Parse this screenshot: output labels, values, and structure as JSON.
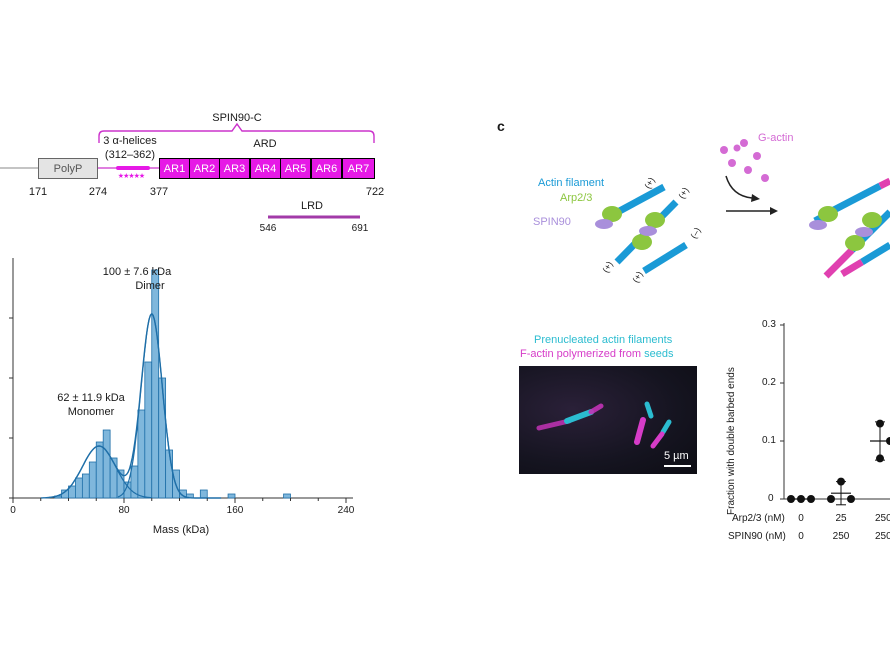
{
  "panel_c_letter": "c",
  "protein_map": {
    "spin90c_label": "SPIN90-C",
    "helices_label": "3 α-helices",
    "helices_range": "(312–362)",
    "stars": "★★★★★",
    "ard_label": "ARD",
    "polyp_label": "PolyP",
    "ar_labels": [
      "AR1",
      "AR2",
      "AR3",
      "AR4",
      "AR5",
      "AR6",
      "AR7"
    ],
    "positions": [
      "171",
      "274",
      "377",
      "722"
    ],
    "lrd_label": "LRD",
    "lrd_positions": [
      "546",
      "691"
    ],
    "colors": {
      "domain": "#e619e6",
      "bracket": "#cc33cc",
      "lrd": "#a23aa8"
    }
  },
  "mass_photometry": {
    "dimer_value": "100 ± 7.6 kDa",
    "dimer_label": "Dimer",
    "monomer_value": "62 ± 11.9 kDa",
    "monomer_label": "Monomer",
    "xlabel": "Mass (kDa)",
    "xticks": [
      "0",
      "80",
      "160",
      "240"
    ]
  },
  "schematic": {
    "actin_filament": "Actin filament",
    "arp23": "Arp2/3",
    "spin90": "SPIN90",
    "g_actin": "G-actin",
    "plus": "(+)",
    "minus": "(–)",
    "colors": {
      "actin": "#1a9ad6",
      "arp": "#8cc63f",
      "spin": "#a98fdb",
      "gactin": "#d46bd4",
      "new_actin": "#e040b0"
    }
  },
  "microscopy": {
    "legend_line1": "Prenucleated actin filaments",
    "legend_line2_part1": "F-actin polymerized from ",
    "legend_line2_part2": "seeds",
    "scale_bar": "5 µm",
    "colors": {
      "cyan": "#2bbcd0",
      "magenta": "#d63cc8"
    }
  },
  "fraction_plot": {
    "ylabel": "Fraction with double barbed ends",
    "yticks": [
      "0.3",
      "0.2",
      "0.1",
      "0"
    ],
    "row_labels": [
      "Arp2/3 (nM)",
      "SPIN90 (nM)"
    ],
    "arp_values": [
      "0",
      "25",
      "250"
    ],
    "spin_values": [
      "0",
      "250",
      "250"
    ]
  },
  "chart_data": [
    {
      "type": "bar",
      "title": "",
      "xlabel": "Mass (kDa)",
      "ylabel": "",
      "xlim": [
        0,
        250
      ],
      "bin_width": 5,
      "bins_start": [
        30,
        35,
        40,
        45,
        50,
        55,
        60,
        65,
        70,
        75,
        80,
        85,
        90,
        95,
        100,
        105,
        110,
        115,
        120,
        125,
        130,
        135,
        155,
        195
      ],
      "values": [
        0.5,
        2,
        3,
        5,
        6,
        9,
        14,
        17,
        10,
        7,
        4,
        8,
        22,
        34,
        57,
        30,
        12,
        7,
        2,
        1,
        0,
        2,
        1,
        1
      ],
      "fits": [
        {
          "name": "Monomer",
          "mean": 62,
          "sd": 11.9,
          "peak": 13
        },
        {
          "name": "Dimer",
          "mean": 100,
          "sd": 7.6,
          "peak": 46
        }
      ]
    },
    {
      "type": "scatter",
      "xlabel": "",
      "ylabel": "Fraction with double barbed ends",
      "ylim": [
        0,
        0.3
      ],
      "categories": [
        "Arp2/3 0 / SPIN90 0",
        "Arp2/3 25 / SPIN90 250",
        "Arp2/3 250 / SPIN90 250"
      ],
      "points": [
        [
          0,
          0,
          0
        ],
        [
          0.03,
          0,
          0
        ],
        [
          0.13,
          0.1,
          0.07
        ]
      ],
      "means": [
        0,
        0.01,
        0.1
      ],
      "errors": [
        0,
        0.02,
        0.033
      ]
    }
  ]
}
